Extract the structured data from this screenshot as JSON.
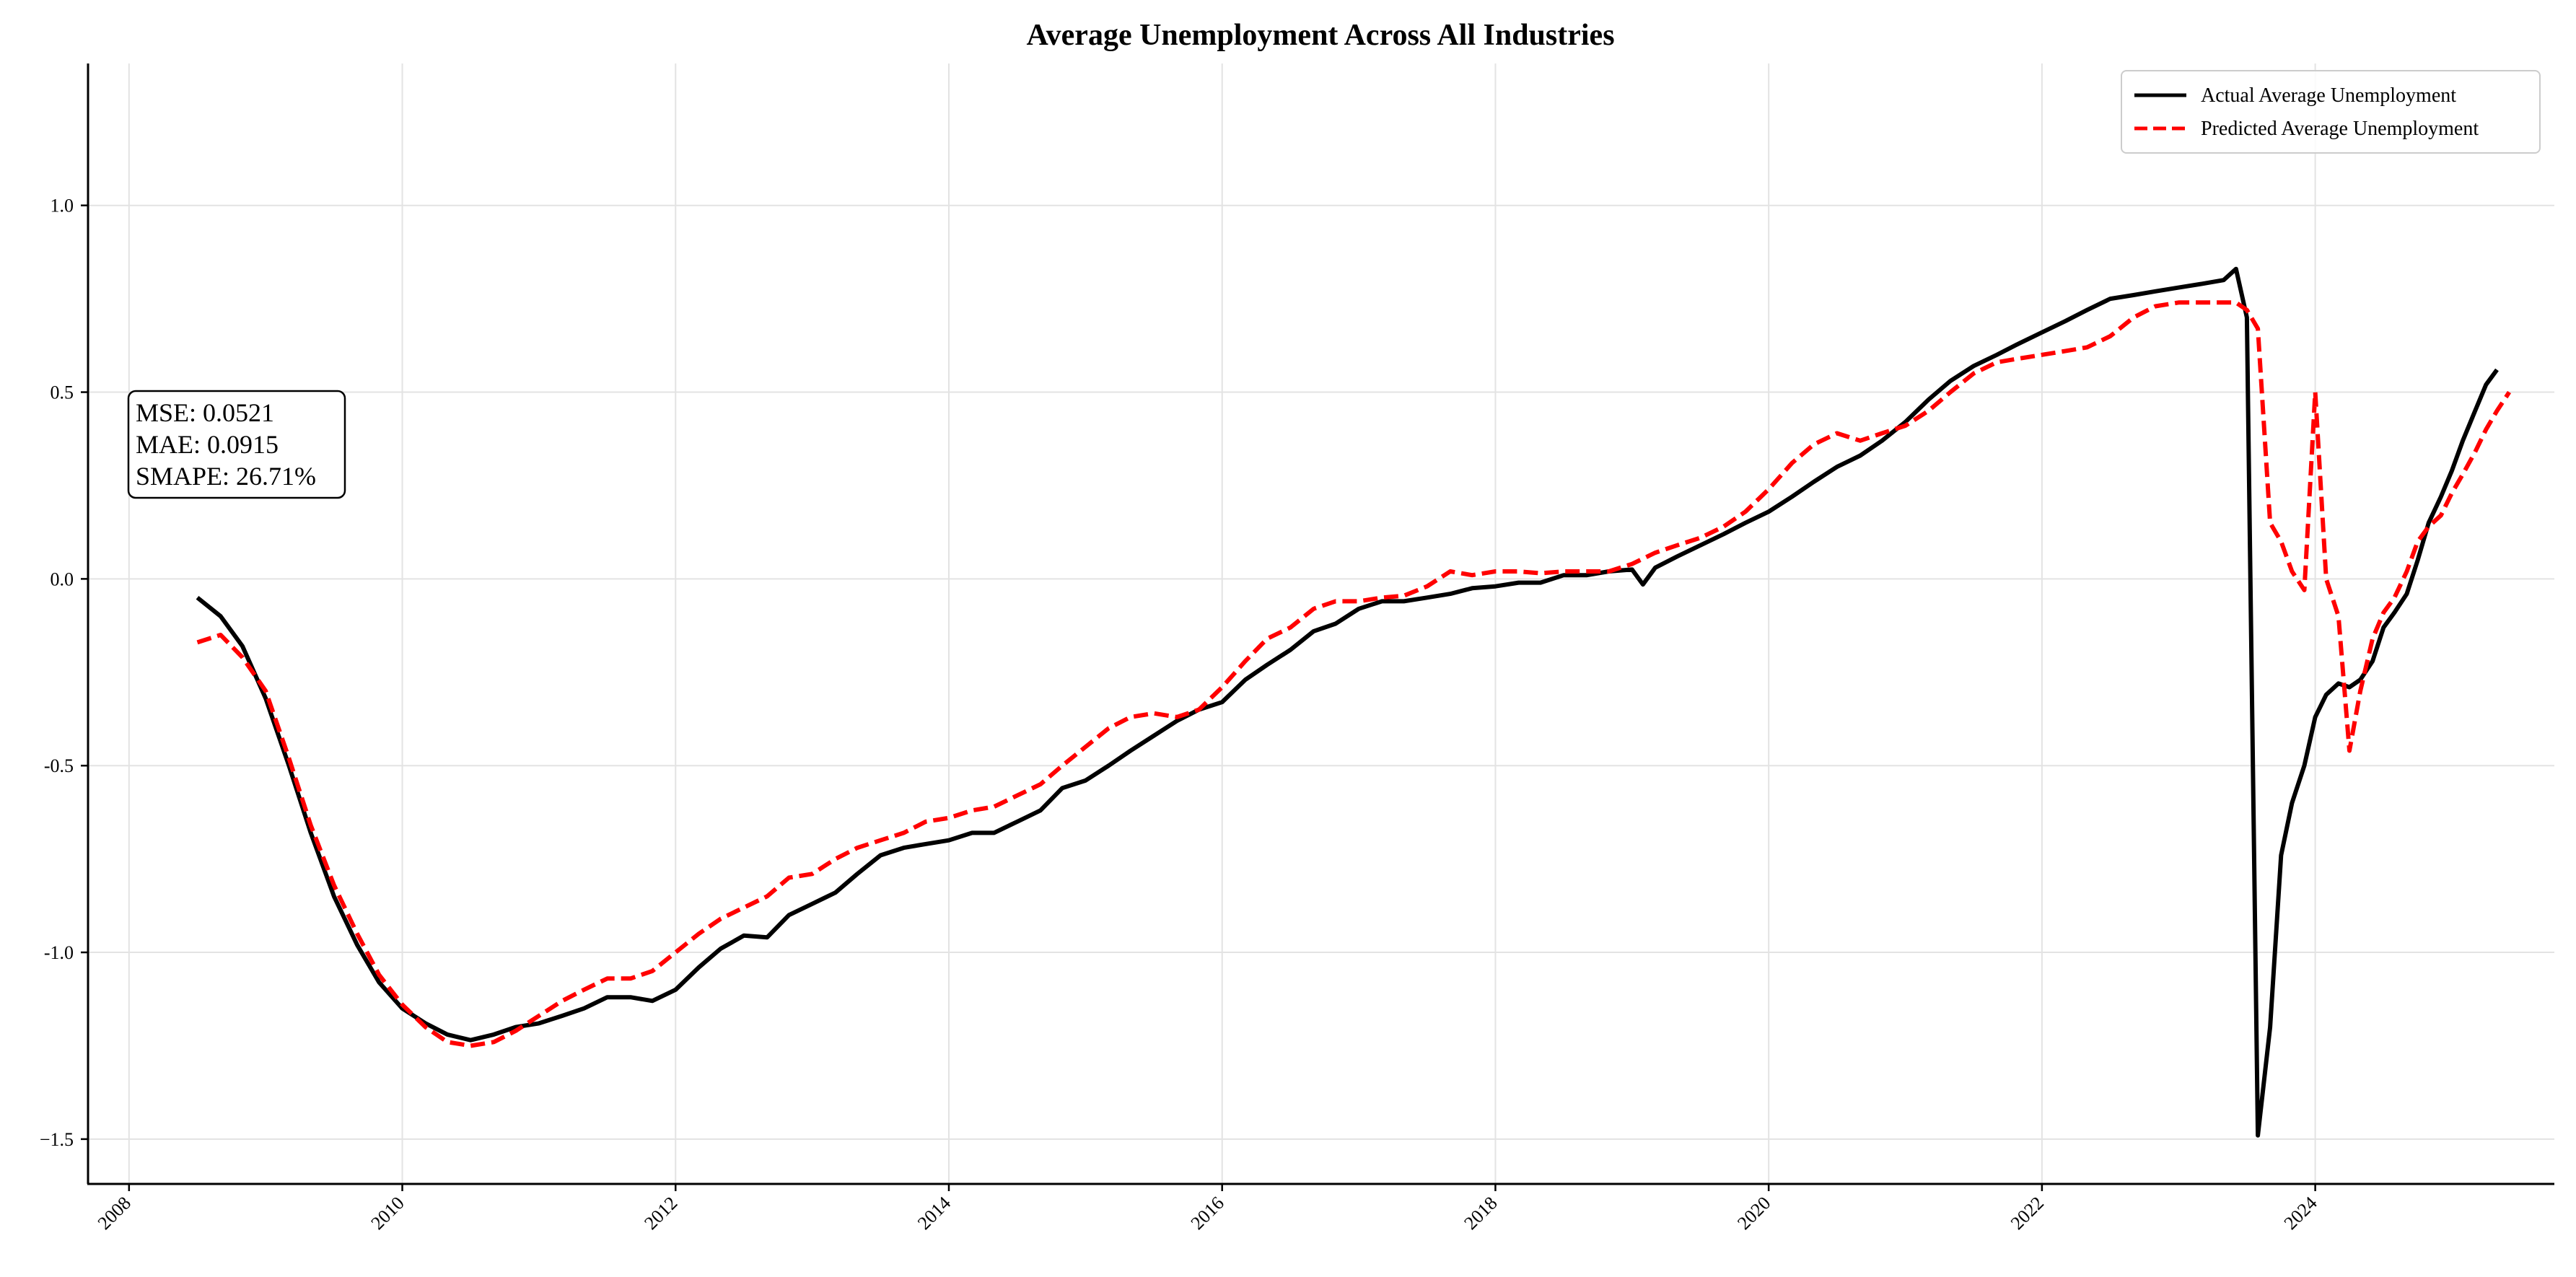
{
  "chart_data": {
    "type": "line",
    "title": "Average Unemployment Across All Industries",
    "xlabel": "",
    "ylabel": "",
    "xlim": [
      2007.7,
      2025.75
    ],
    "ylim": [
      -1.62,
      1.38
    ],
    "xticks": [
      2008,
      2010,
      2012,
      2014,
      2016,
      2018,
      2020,
      2022,
      2024
    ],
    "xtick_labels": [
      "2008",
      "2010",
      "2012",
      "2014",
      "2016",
      "2018",
      "2020",
      "2022",
      "2024"
    ],
    "yticks": [
      -1.5,
      -1.0,
      -0.5,
      0.0,
      0.5,
      1.0
    ],
    "ytick_labels": [
      "−1.5",
      "-1.0",
      "-0.5",
      "0.0",
      "0.5",
      "1.0"
    ],
    "grid": true,
    "legend_position": "top-right",
    "metrics": [
      "MSE: 0.0521",
      "MAE: 0.0915",
      "SMAPE: 26.71%"
    ],
    "series": [
      {
        "name": "Actual Average Unemployment",
        "color": "#000000",
        "style": "solid",
        "points": [
          [
            2008.5,
            -0.05
          ],
          [
            2008.67,
            -0.1
          ],
          [
            2008.83,
            -0.18
          ],
          [
            2009.0,
            -0.32
          ],
          [
            2009.17,
            -0.5
          ],
          [
            2009.33,
            -0.68
          ],
          [
            2009.5,
            -0.85
          ],
          [
            2009.67,
            -0.98
          ],
          [
            2009.83,
            -1.08
          ],
          [
            2010.0,
            -1.15
          ],
          [
            2010.17,
            -1.19
          ],
          [
            2010.33,
            -1.22
          ],
          [
            2010.5,
            -1.235
          ],
          [
            2010.67,
            -1.22
          ],
          [
            2010.83,
            -1.2
          ],
          [
            2011.0,
            -1.19
          ],
          [
            2011.17,
            -1.17
          ],
          [
            2011.33,
            -1.15
          ],
          [
            2011.5,
            -1.12
          ],
          [
            2011.67,
            -1.12
          ],
          [
            2011.83,
            -1.13
          ],
          [
            2012.0,
            -1.1
          ],
          [
            2012.17,
            -1.04
          ],
          [
            2012.33,
            -0.99
          ],
          [
            2012.5,
            -0.955
          ],
          [
            2012.67,
            -0.96
          ],
          [
            2012.83,
            -0.9
          ],
          [
            2013.0,
            -0.87
          ],
          [
            2013.17,
            -0.84
          ],
          [
            2013.33,
            -0.79
          ],
          [
            2013.5,
            -0.74
          ],
          [
            2013.67,
            -0.72
          ],
          [
            2013.83,
            -0.71
          ],
          [
            2014.0,
            -0.7
          ],
          [
            2014.17,
            -0.68
          ],
          [
            2014.33,
            -0.68
          ],
          [
            2014.5,
            -0.65
          ],
          [
            2014.67,
            -0.62
          ],
          [
            2014.83,
            -0.56
          ],
          [
            2015.0,
            -0.54
          ],
          [
            2015.17,
            -0.5
          ],
          [
            2015.33,
            -0.46
          ],
          [
            2015.5,
            -0.42
          ],
          [
            2015.67,
            -0.38
          ],
          [
            2015.83,
            -0.35
          ],
          [
            2016.0,
            -0.33
          ],
          [
            2016.17,
            -0.27
          ],
          [
            2016.33,
            -0.23
          ],
          [
            2016.5,
            -0.19
          ],
          [
            2016.67,
            -0.14
          ],
          [
            2016.83,
            -0.12
          ],
          [
            2017.0,
            -0.08
          ],
          [
            2017.17,
            -0.06
          ],
          [
            2017.33,
            -0.06
          ],
          [
            2017.5,
            -0.05
          ],
          [
            2017.67,
            -0.04
          ],
          [
            2017.83,
            -0.025
          ],
          [
            2018.0,
            -0.02
          ],
          [
            2018.17,
            -0.01
          ],
          [
            2018.33,
            -0.01
          ],
          [
            2018.5,
            0.01
          ],
          [
            2018.67,
            0.01
          ],
          [
            2018.83,
            0.02
          ],
          [
            2019.0,
            0.025
          ],
          [
            2019.08,
            -0.015
          ],
          [
            2019.17,
            0.03
          ],
          [
            2019.33,
            0.06
          ],
          [
            2019.5,
            0.09
          ],
          [
            2019.67,
            0.12
          ],
          [
            2019.83,
            0.15
          ],
          [
            2020.0,
            0.18
          ],
          [
            2020.17,
            0.22
          ],
          [
            2020.33,
            0.26
          ],
          [
            2020.5,
            0.3
          ],
          [
            2020.67,
            0.33
          ],
          [
            2020.83,
            0.37
          ],
          [
            2021.0,
            0.42
          ],
          [
            2021.17,
            0.48
          ],
          [
            2021.33,
            0.53
          ],
          [
            2021.5,
            0.57
          ],
          [
            2021.67,
            0.6
          ],
          [
            2021.83,
            0.63
          ],
          [
            2022.0,
            0.66
          ],
          [
            2022.17,
            0.69
          ],
          [
            2022.33,
            0.72
          ],
          [
            2022.5,
            0.75
          ],
          [
            2022.67,
            0.76
          ],
          [
            2022.83,
            0.77
          ],
          [
            2023.0,
            0.78
          ],
          [
            2023.17,
            0.79
          ],
          [
            2023.33,
            0.8
          ],
          [
            2023.42,
            0.83
          ],
          [
            2023.5,
            0.7
          ],
          [
            2023.58,
            -1.49
          ],
          [
            2023.67,
            -1.2
          ],
          [
            2023.75,
            -0.74
          ],
          [
            2023.83,
            -0.6
          ],
          [
            2023.92,
            -0.5
          ],
          [
            2024.0,
            -0.37
          ],
          [
            2024.08,
            -0.31
          ],
          [
            2024.17,
            -0.28
          ],
          [
            2024.25,
            -0.29
          ],
          [
            2024.33,
            -0.27
          ],
          [
            2024.42,
            -0.22
          ],
          [
            2024.5,
            -0.13
          ],
          [
            2024.58,
            -0.09
          ],
          [
            2024.67,
            -0.04
          ],
          [
            2024.75,
            0.05
          ],
          [
            2024.83,
            0.15
          ],
          [
            2024.92,
            0.22
          ],
          [
            2025.0,
            0.29
          ],
          [
            2025.08,
            0.37
          ],
          [
            2025.17,
            0.45
          ],
          [
            2025.25,
            0.52
          ],
          [
            2025.33,
            0.56
          ]
        ]
      },
      {
        "name": "Predicted Average Unemployment",
        "color": "#ff0000",
        "style": "dashed",
        "points": [
          [
            2008.5,
            -0.17
          ],
          [
            2008.67,
            -0.15
          ],
          [
            2008.83,
            -0.21
          ],
          [
            2009.0,
            -0.3
          ],
          [
            2009.17,
            -0.48
          ],
          [
            2009.33,
            -0.66
          ],
          [
            2009.5,
            -0.82
          ],
          [
            2009.67,
            -0.95
          ],
          [
            2009.83,
            -1.06
          ],
          [
            2010.0,
            -1.14
          ],
          [
            2010.17,
            -1.2
          ],
          [
            2010.33,
            -1.24
          ],
          [
            2010.5,
            -1.25
          ],
          [
            2010.67,
            -1.24
          ],
          [
            2010.83,
            -1.21
          ],
          [
            2011.0,
            -1.17
          ],
          [
            2011.17,
            -1.13
          ],
          [
            2011.33,
            -1.1
          ],
          [
            2011.5,
            -1.07
          ],
          [
            2011.67,
            -1.07
          ],
          [
            2011.83,
            -1.05
          ],
          [
            2012.0,
            -1.0
          ],
          [
            2012.17,
            -0.95
          ],
          [
            2012.33,
            -0.91
          ],
          [
            2012.5,
            -0.88
          ],
          [
            2012.67,
            -0.85
          ],
          [
            2012.83,
            -0.8
          ],
          [
            2013.0,
            -0.79
          ],
          [
            2013.17,
            -0.75
          ],
          [
            2013.33,
            -0.72
          ],
          [
            2013.5,
            -0.7
          ],
          [
            2013.67,
            -0.68
          ],
          [
            2013.83,
            -0.65
          ],
          [
            2014.0,
            -0.64
          ],
          [
            2014.17,
            -0.62
          ],
          [
            2014.33,
            -0.61
          ],
          [
            2014.5,
            -0.58
          ],
          [
            2014.67,
            -0.55
          ],
          [
            2014.83,
            -0.5
          ],
          [
            2015.0,
            -0.45
          ],
          [
            2015.17,
            -0.4
          ],
          [
            2015.33,
            -0.37
          ],
          [
            2015.5,
            -0.36
          ],
          [
            2015.67,
            -0.37
          ],
          [
            2015.83,
            -0.35
          ],
          [
            2016.0,
            -0.29
          ],
          [
            2016.17,
            -0.22
          ],
          [
            2016.33,
            -0.16
          ],
          [
            2016.5,
            -0.13
          ],
          [
            2016.67,
            -0.08
          ],
          [
            2016.83,
            -0.06
          ],
          [
            2017.0,
            -0.06
          ],
          [
            2017.17,
            -0.05
          ],
          [
            2017.33,
            -0.045
          ],
          [
            2017.5,
            -0.02
          ],
          [
            2017.67,
            0.02
          ],
          [
            2017.83,
            0.01
          ],
          [
            2018.0,
            0.02
          ],
          [
            2018.17,
            0.02
          ],
          [
            2018.33,
            0.015
          ],
          [
            2018.5,
            0.02
          ],
          [
            2018.67,
            0.02
          ],
          [
            2018.83,
            0.02
          ],
          [
            2019.0,
            0.04
          ],
          [
            2019.17,
            0.07
          ],
          [
            2019.33,
            0.09
          ],
          [
            2019.5,
            0.11
          ],
          [
            2019.67,
            0.14
          ],
          [
            2019.83,
            0.18
          ],
          [
            2020.0,
            0.24
          ],
          [
            2020.17,
            0.31
          ],
          [
            2020.33,
            0.36
          ],
          [
            2020.5,
            0.39
          ],
          [
            2020.67,
            0.37
          ],
          [
            2020.83,
            0.39
          ],
          [
            2021.0,
            0.41
          ],
          [
            2021.17,
            0.45
          ],
          [
            2021.33,
            0.5
          ],
          [
            2021.5,
            0.55
          ],
          [
            2021.67,
            0.58
          ],
          [
            2021.83,
            0.59
          ],
          [
            2022.0,
            0.6
          ],
          [
            2022.17,
            0.61
          ],
          [
            2022.33,
            0.62
          ],
          [
            2022.5,
            0.65
          ],
          [
            2022.67,
            0.7
          ],
          [
            2022.83,
            0.73
          ],
          [
            2023.0,
            0.74
          ],
          [
            2023.17,
            0.74
          ],
          [
            2023.33,
            0.74
          ],
          [
            2023.42,
            0.74
          ],
          [
            2023.5,
            0.72
          ],
          [
            2023.58,
            0.67
          ],
          [
            2023.67,
            0.15
          ],
          [
            2023.75,
            0.1
          ],
          [
            2023.83,
            0.02
          ],
          [
            2023.92,
            -0.03
          ],
          [
            2024.0,
            0.5
          ],
          [
            2024.08,
            0.0
          ],
          [
            2024.17,
            -0.1
          ],
          [
            2024.25,
            -0.46
          ],
          [
            2024.33,
            -0.3
          ],
          [
            2024.42,
            -0.16
          ],
          [
            2024.5,
            -0.09
          ],
          [
            2024.58,
            -0.05
          ],
          [
            2024.67,
            0.02
          ],
          [
            2024.75,
            0.1
          ],
          [
            2024.83,
            0.14
          ],
          [
            2024.92,
            0.17
          ],
          [
            2025.0,
            0.23
          ],
          [
            2025.08,
            0.28
          ],
          [
            2025.17,
            0.34
          ],
          [
            2025.25,
            0.4
          ],
          [
            2025.33,
            0.45
          ],
          [
            2025.42,
            0.5
          ]
        ]
      }
    ]
  }
}
